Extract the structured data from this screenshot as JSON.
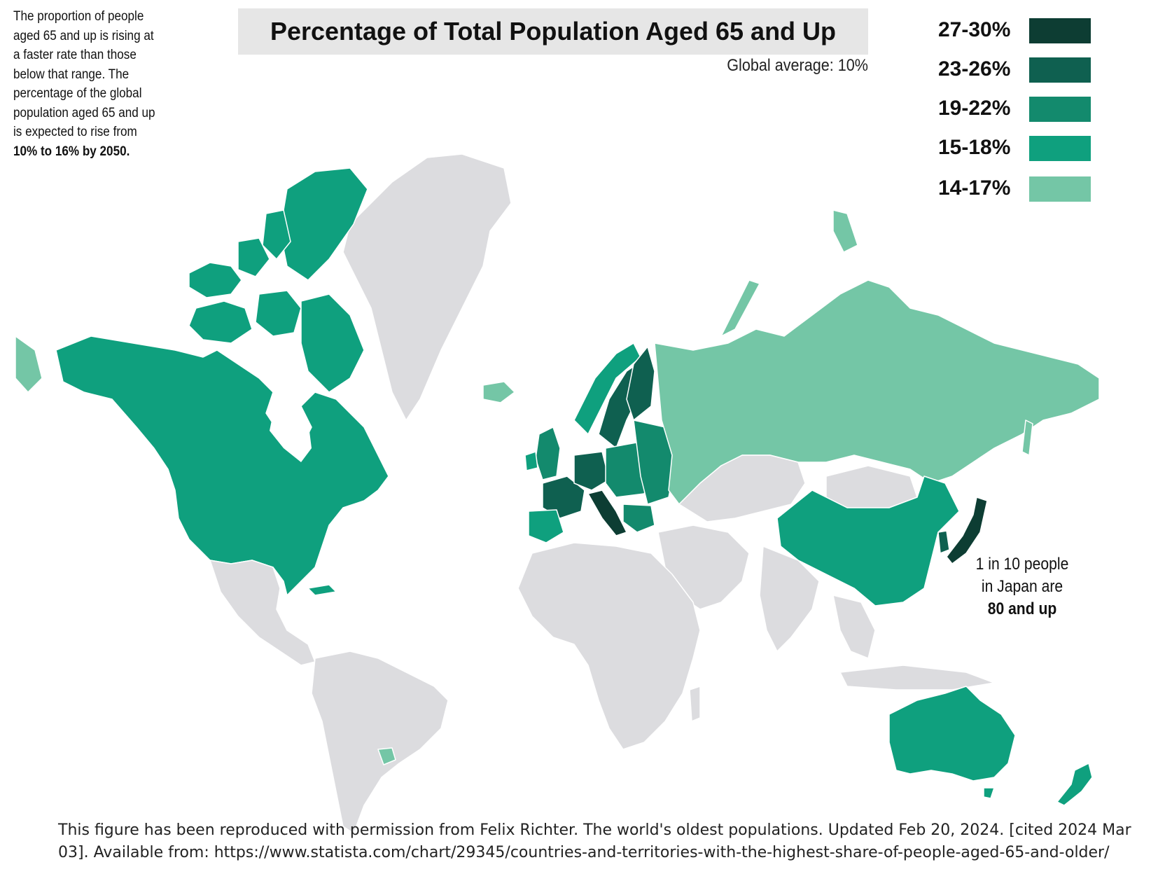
{
  "intro": {
    "text": "The proportion of people aged 65 and up is rising at a faster rate than those below that range. The percentage of the global population aged 65 and up is expected to rise from",
    "bold": "10% to 16% by 2050."
  },
  "title": "Percentage of Total Population Aged 65 and Up",
  "subtitle": "Global average: 10%",
  "legend": [
    {
      "label": "27-30%",
      "color": "#0d3d33"
    },
    {
      "label": "23-26%",
      "color": "#0f6050"
    },
    {
      "label": "19-22%",
      "color": "#138a6d"
    },
    {
      "label": "15-18%",
      "color": "#0fa07e"
    },
    {
      "label": "14-17%",
      "color": "#74c6a6"
    }
  ],
  "colors": {
    "no_data": "#dcdcdf",
    "borders": "#ffffff"
  },
  "annotation": {
    "line1": "1 in 10 people",
    "line2": "in Japan are",
    "bold": "80 and up"
  },
  "caption": "This figure has been reproduced with permission from Felix Richter. The world's oldest populations. Updated Feb 20, 2024. [cited 2024 Mar 03]. Available from:  https://www.statista.com/chart/29345/countries-and-territories-with-the-highest-share-of-people-aged-65-and-older/"
}
